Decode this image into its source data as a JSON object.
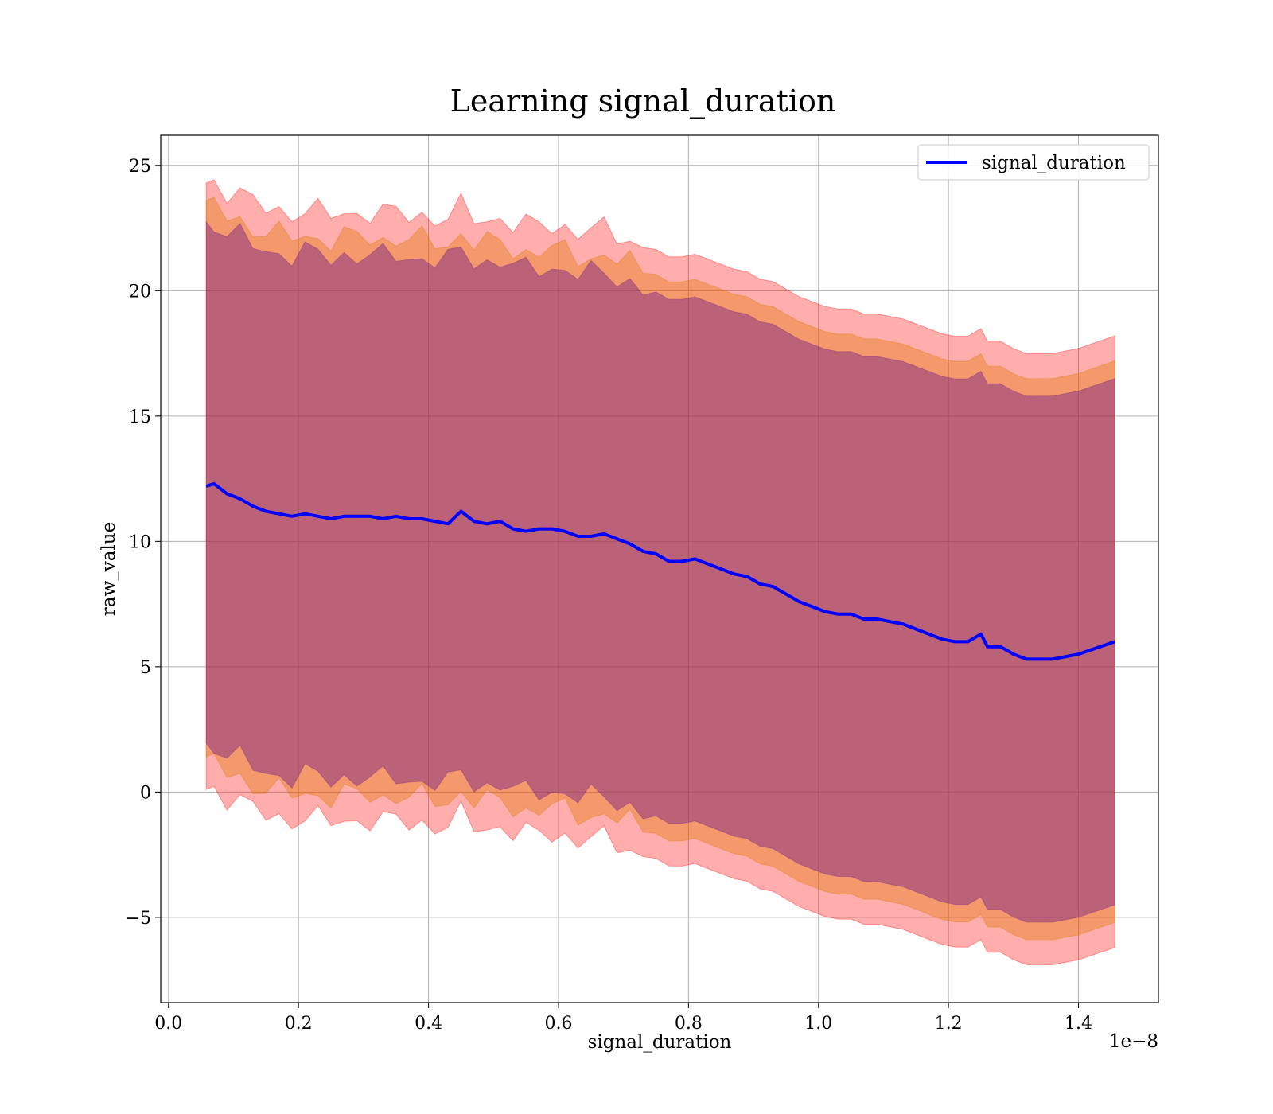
{
  "chart_data": {
    "type": "line",
    "title": "Learning signal_duration",
    "xlabel": "signal_duration",
    "ylabel": "raw_value",
    "x_offset_label": "1e−8",
    "xlim": [
      -0.012,
      1.523
    ],
    "ylim": [
      -8.4,
      26.2
    ],
    "x_ticks": [
      0.0,
      0.2,
      0.4,
      0.6,
      0.8,
      1.0,
      1.2,
      1.4
    ],
    "x_tick_labels": [
      "0.0",
      "0.2",
      "0.4",
      "0.6",
      "0.8",
      "1.0",
      "1.2",
      "1.4"
    ],
    "y_ticks": [
      -5,
      0,
      5,
      10,
      15,
      20,
      25
    ],
    "y_tick_labels": [
      "−5",
      "0",
      "5",
      "10",
      "15",
      "20",
      "25"
    ],
    "grid": true,
    "legend_position": "top-right",
    "colors": {
      "line": "#0000ff",
      "band_outer": "#ff0000",
      "band_middle": "#e07a00",
      "band_inner": "#7a1f8a"
    },
    "series": [
      {
        "name": "signal_duration",
        "x": [
          0.058,
          0.07,
          0.09,
          0.11,
          0.13,
          0.15,
          0.17,
          0.19,
          0.21,
          0.23,
          0.25,
          0.27,
          0.29,
          0.31,
          0.33,
          0.35,
          0.37,
          0.39,
          0.41,
          0.43,
          0.45,
          0.47,
          0.49,
          0.51,
          0.53,
          0.55,
          0.57,
          0.59,
          0.61,
          0.63,
          0.65,
          0.67,
          0.69,
          0.71,
          0.73,
          0.75,
          0.77,
          0.79,
          0.81,
          0.83,
          0.85,
          0.87,
          0.89,
          0.91,
          0.93,
          0.95,
          0.97,
          0.99,
          1.01,
          1.03,
          1.05,
          1.07,
          1.09,
          1.11,
          1.13,
          1.15,
          1.17,
          1.19,
          1.21,
          1.23,
          1.25,
          1.26,
          1.28,
          1.3,
          1.32,
          1.36,
          1.4,
          1.456
        ],
        "y": [
          12.2,
          12.3,
          11.9,
          11.7,
          11.4,
          11.2,
          11.1,
          11.0,
          11.1,
          11.0,
          10.9,
          11.0,
          11.0,
          11.0,
          10.9,
          11.0,
          10.9,
          10.9,
          10.8,
          10.7,
          11.2,
          10.8,
          10.7,
          10.8,
          10.5,
          10.4,
          10.5,
          10.5,
          10.4,
          10.2,
          10.2,
          10.3,
          10.1,
          9.9,
          9.6,
          9.5,
          9.2,
          9.2,
          9.3,
          9.1,
          8.9,
          8.7,
          8.6,
          8.3,
          8.2,
          7.9,
          7.6,
          7.4,
          7.2,
          7.1,
          7.1,
          6.9,
          6.9,
          6.8,
          6.7,
          6.5,
          6.3,
          6.1,
          6.0,
          6.0,
          6.3,
          5.8,
          5.8,
          5.5,
          5.3,
          5.3,
          5.5,
          6.0
        ]
      }
    ],
    "bands": [
      {
        "label": "outer",
        "half_width_start": 12.1,
        "half_width_end": 12.2
      },
      {
        "label": "middle",
        "half_width_start": 11.1,
        "half_width_end": 11.2
      },
      {
        "label": "inner",
        "half_width_start": 10.4,
        "half_width_end": 10.5
      }
    ]
  }
}
